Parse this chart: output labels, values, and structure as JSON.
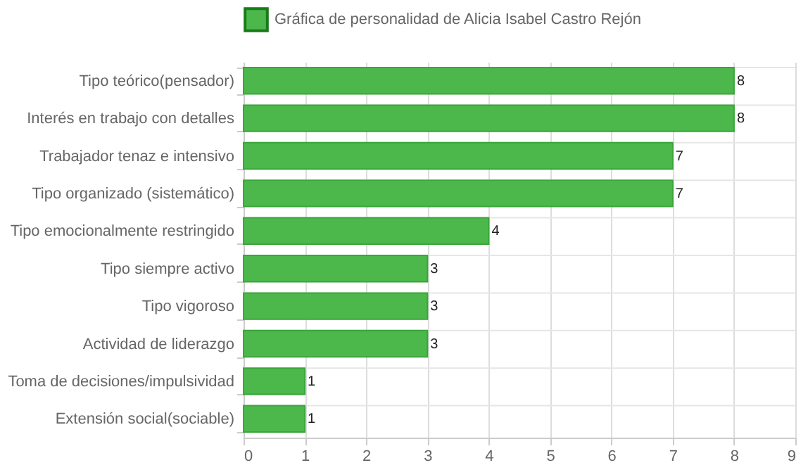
{
  "chart_data": {
    "type": "bar",
    "orientation": "horizontal",
    "categories": [
      "Tipo teórico(pensador)",
      "Interés en trabajo con detalles",
      "Trabajador tenaz e intensivo",
      "Tipo organizado (sistemático)",
      "Tipo emocionalmente restringido",
      "Tipo siempre activo",
      "Tipo vigoroso",
      "Actividad de liderazgo",
      "Toma de decisiones/impulsividad",
      "Extensión social(sociable)"
    ],
    "series": [
      {
        "name": "Gráfica de personalidad de Alicia Isabel Castro Rejón",
        "color": "#4cb84c",
        "values": [
          8,
          8,
          7,
          7,
          4,
          3,
          3,
          3,
          1,
          1
        ]
      }
    ],
    "xlim": [
      0,
      9
    ],
    "xticks": [
      0,
      1,
      2,
      3,
      4,
      5,
      6,
      7,
      8,
      9
    ],
    "grid": true,
    "legend": "top",
    "data_labels": true
  }
}
